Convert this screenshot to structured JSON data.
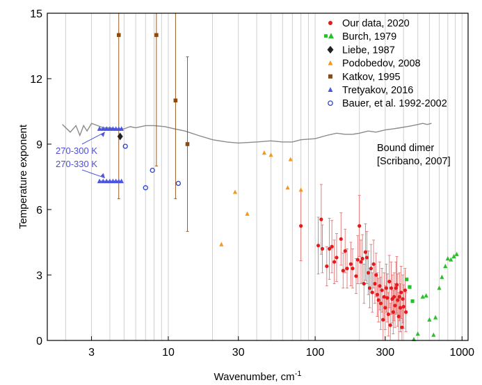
{
  "chart_data": {
    "type": "scatter",
    "xlabel": "Wavenumber, cm",
    "xlabel_sup": "-1",
    "ylabel": "Temperature exponent",
    "xscale": "log",
    "xlim": [
      1.5,
      1100
    ],
    "ylim": [
      0,
      15
    ],
    "xticks": [
      3,
      10,
      30,
      100,
      300,
      1000
    ],
    "xtick_labels": [
      "3",
      "10",
      "30",
      "100",
      "300",
      "1000"
    ],
    "yticks": [
      0,
      3,
      6,
      9,
      12,
      15
    ],
    "ytick_labels": [
      "0",
      "3",
      "6",
      "9",
      "12",
      "15"
    ],
    "grid": "vertical minor lines",
    "legend_position": "top-right",
    "colors": {
      "our_data": "#e41a1c",
      "burch": "#2bc02b",
      "liebe": "#222222",
      "podobedov": "#f39a1e",
      "katkov": "#8b4a0f",
      "tretyakov": "#4a55e0",
      "bauer": "#2a3fd0",
      "bound_dimer": "#8a8a8a"
    },
    "series": [
      {
        "name": "Our data, 2020",
        "marker": "circle",
        "points": [
          [
            80,
            5.25,
            1.6
          ],
          [
            105,
            4.35,
            1.3
          ],
          [
            110,
            5.55,
            1.6
          ],
          [
            112,
            4.2,
            1.1
          ],
          [
            120,
            3.4,
            0.9
          ],
          [
            125,
            4.2,
            1.4
          ],
          [
            130,
            4.3,
            1.2
          ],
          [
            135,
            3.6,
            1.0
          ],
          [
            140,
            3.8,
            1.1
          ],
          [
            150,
            4.65,
            1.2
          ],
          [
            155,
            3.2,
            0.8
          ],
          [
            160,
            4.1,
            1.0
          ],
          [
            165,
            3.3,
            0.9
          ],
          [
            175,
            3.5,
            1.0
          ],
          [
            180,
            3.3,
            0.9
          ],
          [
            190,
            2.95,
            0.8
          ],
          [
            195,
            3.7,
            1.1
          ],
          [
            200,
            5.25,
            1.4
          ],
          [
            205,
            3.6,
            1.0
          ],
          [
            210,
            3.75,
            1.1
          ],
          [
            215,
            2.6,
            0.9
          ],
          [
            220,
            4.05,
            1.3
          ],
          [
            225,
            3.8,
            1.2
          ],
          [
            230,
            3.1,
            1.0
          ],
          [
            235,
            2.4,
            0.9
          ],
          [
            240,
            3.3,
            1.1
          ],
          [
            245,
            2.2,
            0.9
          ],
          [
            250,
            3.5,
            1.1
          ],
          [
            255,
            2.6,
            0.9
          ],
          [
            260,
            3.0,
            1.0
          ],
          [
            265,
            2.1,
            1.0
          ],
          [
            270,
            1.85,
            1.0
          ],
          [
            275,
            2.5,
            1.1
          ],
          [
            280,
            1.7,
            1.2
          ],
          [
            285,
            2.3,
            1.0
          ],
          [
            290,
            0.95,
            1.0
          ],
          [
            295,
            2.0,
            1.1
          ],
          [
            300,
            1.5,
            1.0
          ],
          [
            305,
            2.4,
            1.1
          ],
          [
            310,
            1.95,
            1.1
          ],
          [
            315,
            1.2,
            1.0
          ],
          [
            320,
            2.7,
            1.2
          ],
          [
            325,
            0.7,
            1.0
          ],
          [
            330,
            2.4,
            1.2
          ],
          [
            335,
            1.9,
            1.1
          ],
          [
            340,
            1.3,
            1.0
          ],
          [
            345,
            2.0,
            1.1
          ],
          [
            350,
            1.6,
            1.0
          ],
          [
            355,
            2.4,
            1.2
          ],
          [
            360,
            2.55,
            1.3
          ],
          [
            365,
            1.85,
            1.2
          ],
          [
            370,
            1.1,
            1.1
          ],
          [
            375,
            2.0,
            1.1
          ],
          [
            380,
            1.5,
            1.1
          ],
          [
            385,
            2.2,
            1.2
          ],
          [
            390,
            0.6,
            0.9
          ],
          [
            395,
            1.9,
            1.1
          ],
          [
            400,
            1.55,
            1.0
          ],
          [
            410,
            2.3,
            1.0
          ],
          [
            415,
            1.3,
            0.9
          ]
        ]
      },
      {
        "name": "Burch, 1979",
        "marker": "square",
        "points": [
          [
            420,
            2.8
          ],
          [
            440,
            2.45
          ],
          [
            460,
            1.8
          ]
        ]
      },
      {
        "name": "Burch, 1979",
        "marker": "triangle",
        "points": [
          [
            470,
            0.05
          ],
          [
            500,
            0.3
          ],
          [
            540,
            2.0
          ],
          [
            570,
            2.05
          ],
          [
            600,
            0.95
          ],
          [
            640,
            0.25
          ],
          [
            660,
            1.05
          ],
          [
            700,
            2.4
          ],
          [
            730,
            2.9
          ],
          [
            770,
            3.4
          ],
          [
            800,
            3.75
          ],
          [
            840,
            3.7
          ],
          [
            880,
            3.85
          ],
          [
            920,
            3.95
          ]
        ]
      },
      {
        "name": "Liebe, 1987",
        "marker": "diamond",
        "points": [
          [
            4.7,
            9.35
          ]
        ]
      },
      {
        "name": "Podobedov, 2008",
        "marker": "triangle",
        "points": [
          [
            23,
            4.4
          ],
          [
            28.5,
            6.8
          ],
          [
            34.5,
            5.8
          ],
          [
            45,
            8.6
          ],
          [
            50,
            8.5
          ],
          [
            65,
            7.0
          ],
          [
            68,
            8.3
          ],
          [
            80,
            6.9
          ]
        ]
      },
      {
        "name": "Katkov, 1995",
        "marker": "square",
        "points": [
          [
            4.6,
            14.0,
            7.5
          ],
          [
            8.3,
            14.0,
            6.0
          ],
          [
            11.2,
            11.0,
            4.5
          ],
          [
            13.5,
            9.0,
            4.0
          ]
        ]
      },
      {
        "name": "Tretyakov, 2016",
        "marker": "triangle",
        "points": [
          [
            3.4,
            9.7
          ],
          [
            3.6,
            9.7
          ],
          [
            3.8,
            9.7
          ],
          [
            4.0,
            9.7
          ],
          [
            4.2,
            9.7
          ],
          [
            4.4,
            9.7
          ],
          [
            4.6,
            9.7
          ],
          [
            4.8,
            9.7
          ],
          [
            3.4,
            7.3
          ],
          [
            3.6,
            7.3
          ],
          [
            3.8,
            7.3
          ],
          [
            4.0,
            7.3
          ],
          [
            4.2,
            7.3
          ],
          [
            4.4,
            7.3
          ],
          [
            4.6,
            7.3
          ],
          [
            4.8,
            7.3
          ]
        ]
      },
      {
        "name": "Bauer, et al. 1992-2002",
        "marker": "circle-open",
        "points": [
          [
            5.1,
            8.9
          ],
          [
            7.0,
            7.0
          ],
          [
            7.8,
            7.8
          ],
          [
            11.7,
            7.2
          ]
        ]
      }
    ],
    "bound_dimer_curve": [
      [
        1.9,
        9.9
      ],
      [
        2.15,
        9.55
      ],
      [
        2.35,
        9.85
      ],
      [
        2.5,
        9.4
      ],
      [
        2.65,
        9.85
      ],
      [
        2.8,
        9.6
      ],
      [
        3.0,
        9.95
      ],
      [
        3.3,
        9.85
      ],
      [
        3.6,
        9.75
      ],
      [
        4.0,
        9.75
      ],
      [
        4.5,
        9.7
      ],
      [
        5.0,
        9.7
      ],
      [
        5.5,
        9.8
      ],
      [
        6.0,
        9.75
      ],
      [
        7.0,
        9.85
      ],
      [
        8.0,
        9.85
      ],
      [
        9.5,
        9.8
      ],
      [
        11,
        9.7
      ],
      [
        13,
        9.6
      ],
      [
        16,
        9.4
      ],
      [
        20,
        9.2
      ],
      [
        25,
        9.1
      ],
      [
        30,
        9.05
      ],
      [
        40,
        9.1
      ],
      [
        50,
        9.15
      ],
      [
        60,
        9.1
      ],
      [
        70,
        9.1
      ],
      [
        80,
        9.2
      ],
      [
        100,
        9.25
      ],
      [
        120,
        9.4
      ],
      [
        140,
        9.5
      ],
      [
        160,
        9.45
      ],
      [
        180,
        9.45
      ],
      [
        200,
        9.5
      ],
      [
        230,
        9.6
      ],
      [
        260,
        9.55
      ],
      [
        300,
        9.65
      ],
      [
        340,
        9.7
      ],
      [
        380,
        9.75
      ],
      [
        420,
        9.8
      ],
      [
        460,
        9.85
      ],
      [
        500,
        9.9
      ],
      [
        540,
        9.95
      ],
      [
        580,
        9.9
      ],
      [
        620,
        9.95
      ]
    ],
    "annotations": {
      "bound_dimer_line1": "Bound dimer",
      "bound_dimer_line2": "[Scribano, 2007]",
      "tretyakov_upper": "270-300 K",
      "tretyakov_lower": "270-330 K"
    },
    "legend": [
      {
        "label": "Our data, 2020",
        "marker": "circle",
        "color": "#e41a1c"
      },
      {
        "label": "Burch, 1979",
        "marker": "square-triangle",
        "color": "#2bc02b"
      },
      {
        "label": "Liebe, 1987",
        "marker": "diamond",
        "color": "#222222"
      },
      {
        "label": "Podobedov, 2008",
        "marker": "triangle",
        "color": "#f39a1e"
      },
      {
        "label": "Katkov, 1995",
        "marker": "square",
        "color": "#8b4a0f"
      },
      {
        "label": "Tretyakov, 2016",
        "marker": "triangle",
        "color": "#4a55e0"
      },
      {
        "label": "Bauer, et al. 1992-2002",
        "marker": "circle-open",
        "color": "#2a3fd0"
      }
    ]
  }
}
